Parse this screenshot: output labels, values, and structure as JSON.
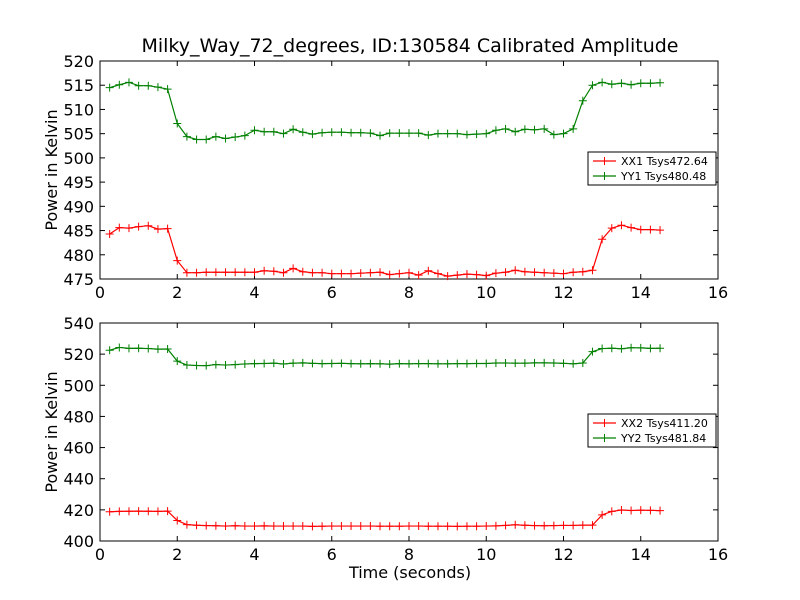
{
  "chart_data": {
    "type": "line",
    "title": "Milky_Way_72_degrees, ID:130584 Calibrated Amplitude",
    "xlabel": "Time (seconds)",
    "x": [
      0.25,
      0.5,
      0.75,
      1.0,
      1.25,
      1.5,
      1.75,
      2.0,
      2.25,
      2.5,
      2.75,
      3.0,
      3.25,
      3.5,
      3.75,
      4.0,
      4.25,
      4.5,
      4.75,
      5.0,
      5.25,
      5.5,
      5.75,
      6.0,
      6.25,
      6.5,
      6.75,
      7.0,
      7.25,
      7.5,
      7.75,
      8.0,
      8.25,
      8.5,
      8.75,
      9.0,
      9.25,
      9.5,
      9.75,
      10.0,
      10.25,
      10.5,
      10.75,
      11.0,
      11.25,
      11.5,
      11.75,
      12.0,
      12.25,
      12.5,
      12.75,
      13.0,
      13.25,
      13.5,
      13.75,
      14.0,
      14.25,
      14.5
    ],
    "panels": [
      {
        "ylabel": "Power in Kelvin",
        "xlim": [
          0,
          16
        ],
        "ylim": [
          475,
          520
        ],
        "xticks": [
          0,
          2,
          4,
          6,
          8,
          10,
          12,
          14,
          16
        ],
        "yticks": [
          475,
          480,
          485,
          490,
          495,
          500,
          505,
          510,
          515,
          520
        ],
        "legend_position": "center-right",
        "series": [
          {
            "name": "XX1 Tsys472.64",
            "color": "#ff0000",
            "values": [
              484.3,
              485.6,
              485.5,
              485.8,
              486.0,
              485.3,
              485.4,
              478.8,
              476.3,
              476.3,
              476.4,
              476.4,
              476.4,
              476.4,
              476.4,
              476.4,
              476.7,
              476.6,
              476.3,
              477.2,
              476.5,
              476.3,
              476.3,
              476.1,
              476.1,
              476.1,
              476.2,
              476.3,
              476.4,
              475.9,
              476.1,
              476.3,
              475.8,
              476.7,
              476.1,
              475.6,
              475.8,
              476.0,
              475.9,
              475.7,
              476.2,
              476.4,
              476.8,
              476.5,
              476.4,
              476.3,
              476.2,
              476.1,
              476.4,
              476.5,
              476.8,
              483.2,
              485.5,
              486.1,
              485.6,
              485.2,
              485.2,
              485.1
            ]
          },
          {
            "name": "YY1 Tsys480.48",
            "color": "#008000",
            "values": [
              514.5,
              515.1,
              515.6,
              514.9,
              514.9,
              514.6,
              514.2,
              507.1,
              504.4,
              503.8,
              503.8,
              504.4,
              504.0,
              504.3,
              504.6,
              505.7,
              505.4,
              505.4,
              505.0,
              505.9,
              505.3,
              504.9,
              505.2,
              505.3,
              505.3,
              505.2,
              505.2,
              505.1,
              504.6,
              505.1,
              505.1,
              505.1,
              505.1,
              504.7,
              505.0,
              505.0,
              505.0,
              504.8,
              504.9,
              505.0,
              505.7,
              506.0,
              505.4,
              505.9,
              505.8,
              506.0,
              504.8,
              505.0,
              506.0,
              511.8,
              515.0,
              515.6,
              515.2,
              515.4,
              515.1,
              515.4,
              515.4,
              515.5
            ]
          }
        ]
      },
      {
        "ylabel": "Power in Kelvin",
        "xlim": [
          0,
          16
        ],
        "ylim": [
          400,
          540
        ],
        "xticks": [
          0,
          2,
          4,
          6,
          8,
          10,
          12,
          14,
          16
        ],
        "yticks": [
          400,
          420,
          440,
          460,
          480,
          500,
          520,
          540
        ],
        "legend_position": "center-right",
        "series": [
          {
            "name": "XX2 Tsys411.20",
            "color": "#ff0000",
            "values": [
              418.8,
              419.0,
              419.1,
              419.2,
              419.1,
              419.0,
              419.2,
              413.2,
              410.5,
              410.1,
              409.9,
              409.8,
              409.6,
              409.8,
              409.6,
              409.6,
              409.7,
              409.6,
              409.6,
              409.6,
              409.6,
              409.4,
              409.5,
              409.6,
              409.6,
              409.6,
              409.6,
              409.6,
              409.5,
              409.5,
              409.5,
              409.6,
              409.6,
              409.5,
              409.5,
              409.5,
              409.4,
              409.5,
              409.5,
              409.6,
              409.7,
              410.0,
              410.4,
              410.1,
              409.9,
              409.8,
              409.9,
              410.0,
              410.0,
              410.2,
              410.2,
              416.8,
              419.0,
              419.9,
              419.6,
              419.8,
              419.7,
              419.5
            ]
          },
          {
            "name": "YY2 Tsys481.84",
            "color": "#008000",
            "values": [
              522.5,
              524.3,
              523.7,
              523.8,
              523.6,
              523.2,
              523.3,
              515.5,
              513.0,
              512.7,
              512.6,
              513.3,
              513.0,
              513.3,
              513.7,
              513.9,
              514.0,
              514.2,
              513.7,
              514.2,
              514.4,
              514.1,
              513.9,
              514.0,
              514.1,
              513.9,
              513.8,
              513.9,
              513.8,
              513.6,
              513.9,
              513.8,
              513.9,
              513.9,
              513.8,
              513.8,
              513.9,
              513.9,
              514.0,
              514.0,
              514.3,
              514.3,
              514.2,
              514.2,
              514.4,
              514.4,
              514.3,
              514.1,
              513.8,
              514.3,
              521.6,
              523.6,
              523.8,
              523.5,
              524.1,
              524.0,
              523.7,
              523.8
            ]
          }
        ]
      }
    ]
  }
}
